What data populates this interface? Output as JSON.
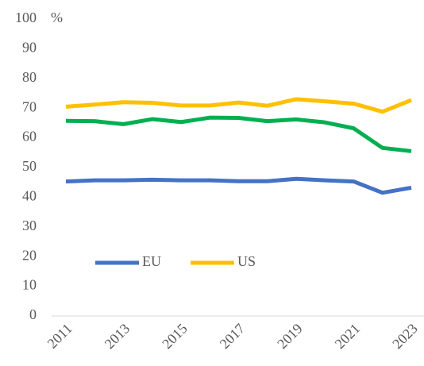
{
  "chart_data": {
    "type": "line",
    "y_label": "%",
    "x": [
      2011,
      2012,
      2013,
      2014,
      2015,
      2016,
      2017,
      2018,
      2019,
      2020,
      2021,
      2022,
      2023
    ],
    "xlim": [
      2011,
      2023
    ],
    "xticks": [
      2011,
      2013,
      2015,
      2017,
      2019,
      2021,
      2023
    ],
    "ylim": [
      0,
      100
    ],
    "yticks": [
      0,
      10,
      20,
      30,
      40,
      50,
      60,
      70,
      80,
      90,
      100
    ],
    "grid": false,
    "series": [
      {
        "name": "EU",
        "color": "#4472c4",
        "values": [
          45.3,
          45.7,
          45.7,
          45.9,
          45.7,
          45.7,
          45.4,
          45.4,
          46.2,
          45.7,
          45.3,
          41.5,
          43.2
        ]
      },
      {
        "name": "US",
        "color": "#ffc000",
        "values": [
          70.5,
          71.2,
          72.0,
          71.8,
          70.9,
          70.9,
          71.9,
          70.8,
          73.0,
          72.3,
          71.5,
          68.8,
          72.7
        ]
      },
      {
        "color": "#00b050",
        "values": [
          65.7,
          65.6,
          64.6,
          66.3,
          65.3,
          66.8,
          66.7,
          65.6,
          66.2,
          65.2,
          63.2,
          56.6,
          55.5
        ]
      }
    ]
  }
}
